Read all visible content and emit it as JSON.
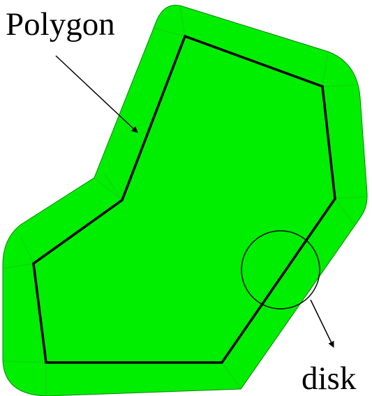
{
  "labels": {
    "polygon": "Polygon",
    "disk": "disk"
  },
  "colors": {
    "fill": "#00ee00",
    "outline": "#000000",
    "seam": "#22b522",
    "background": "#ffffff"
  }
}
